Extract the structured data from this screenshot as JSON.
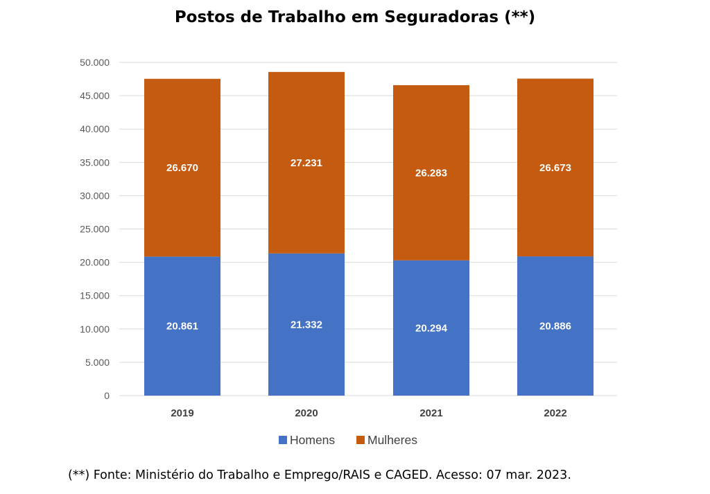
{
  "chart_data": {
    "type": "bar",
    "stacked": true,
    "title": "Postos de Trabalho em Seguradoras (**)",
    "categories": [
      "2019",
      "2020",
      "2021",
      "2022"
    ],
    "series": [
      {
        "name": "Homens",
        "color": "#4472C4",
        "values": [
          20861,
          21332,
          20294,
          20886
        ],
        "labels": [
          "20.861",
          "21.332",
          "20.294",
          "20.886"
        ]
      },
      {
        "name": "Mulheres",
        "color": "#C55A11",
        "values": [
          26670,
          27231,
          26283,
          26673
        ],
        "labels": [
          "26.670",
          "27.231",
          "26.283",
          "26.673"
        ]
      }
    ],
    "ylim": [
      0,
      50000
    ],
    "yticks": [
      0,
      5000,
      10000,
      15000,
      20000,
      25000,
      30000,
      35000,
      40000,
      45000,
      50000
    ],
    "ytick_labels": [
      "0",
      "5.000",
      "10.000",
      "15.000",
      "20.000",
      "25.000",
      "30.000",
      "35.000",
      "40.000",
      "45.000",
      "50.000"
    ],
    "grid": true,
    "legend_position": "bottom",
    "xlabel": "",
    "ylabel": ""
  },
  "footnote": "(**) Fonte: Ministério do Trabalho e Emprego/RAIS e CAGED. Acesso:  07 mar. 2023.",
  "colors": {
    "gridline": "#D9D9D9",
    "axis_text": "#595959"
  }
}
